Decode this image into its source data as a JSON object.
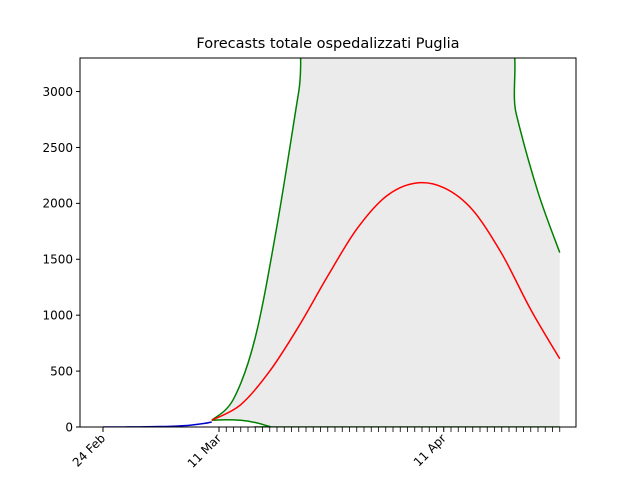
{
  "chart_data": {
    "type": "line",
    "title": "Forecasts totale ospedalizzati Puglia",
    "xlabel": "",
    "ylabel": "",
    "x_axis": {
      "type": "date",
      "start": "2020-02-24",
      "end": "2020-04-27",
      "labeled_ticks": [
        {
          "date": "2020-02-24",
          "label": "24 Feb"
        },
        {
          "date": "2020-03-11",
          "label": "11 Mar"
        },
        {
          "date": "2020-04-11",
          "label": "11 Apr"
        }
      ],
      "minor_ticks": "daily from 2020-03-11 to 2020-04-27"
    },
    "ylim": [
      0,
      3300
    ],
    "yticks": [
      0,
      500,
      1000,
      1500,
      2000,
      2500,
      3000
    ],
    "grid": false,
    "legend": "none",
    "colors": {
      "observed": "#0000cc",
      "forecast": "#ff0000",
      "bounds": "#008000",
      "band": "#ebebeb"
    },
    "observed": {
      "dates": [
        "2020-02-24",
        "2020-02-26",
        "2020-02-28",
        "2020-03-01",
        "2020-03-03",
        "2020-03-05",
        "2020-03-07",
        "2020-03-09",
        "2020-03-10"
      ],
      "values": [
        0,
        0,
        1,
        2,
        4,
        8,
        16,
        32,
        45
      ]
    },
    "forecast": {
      "dates": [
        "2020-03-10",
        "2020-03-14",
        "2020-03-18",
        "2020-03-22",
        "2020-03-26",
        "2020-03-30",
        "2020-04-03",
        "2020-04-07",
        "2020-04-11",
        "2020-04-15",
        "2020-04-19",
        "2020-04-23",
        "2020-04-27"
      ],
      "values": [
        60,
        200,
        500,
        900,
        1350,
        1770,
        2060,
        2180,
        2140,
        1940,
        1550,
        1050,
        610
      ]
    },
    "upper_bound": {
      "dates": [
        "2020-03-10",
        "2020-03-13",
        "2020-03-16",
        "2020-03-19",
        "2020-03-22",
        "2020-03-25",
        "2020-04-18",
        "2020-04-21",
        "2020-04-24",
        "2020-04-27"
      ],
      "values": [
        60,
        250,
        800,
        1800,
        3000,
        4200,
        3700,
        2800,
        2100,
        1560
      ]
    },
    "lower_bound": {
      "dates": [
        "2020-03-10",
        "2020-03-12",
        "2020-03-14",
        "2020-03-16",
        "2020-03-18",
        "2020-03-19",
        "2020-04-27"
      ],
      "values": [
        60,
        65,
        60,
        40,
        5,
        0,
        0
      ]
    }
  }
}
